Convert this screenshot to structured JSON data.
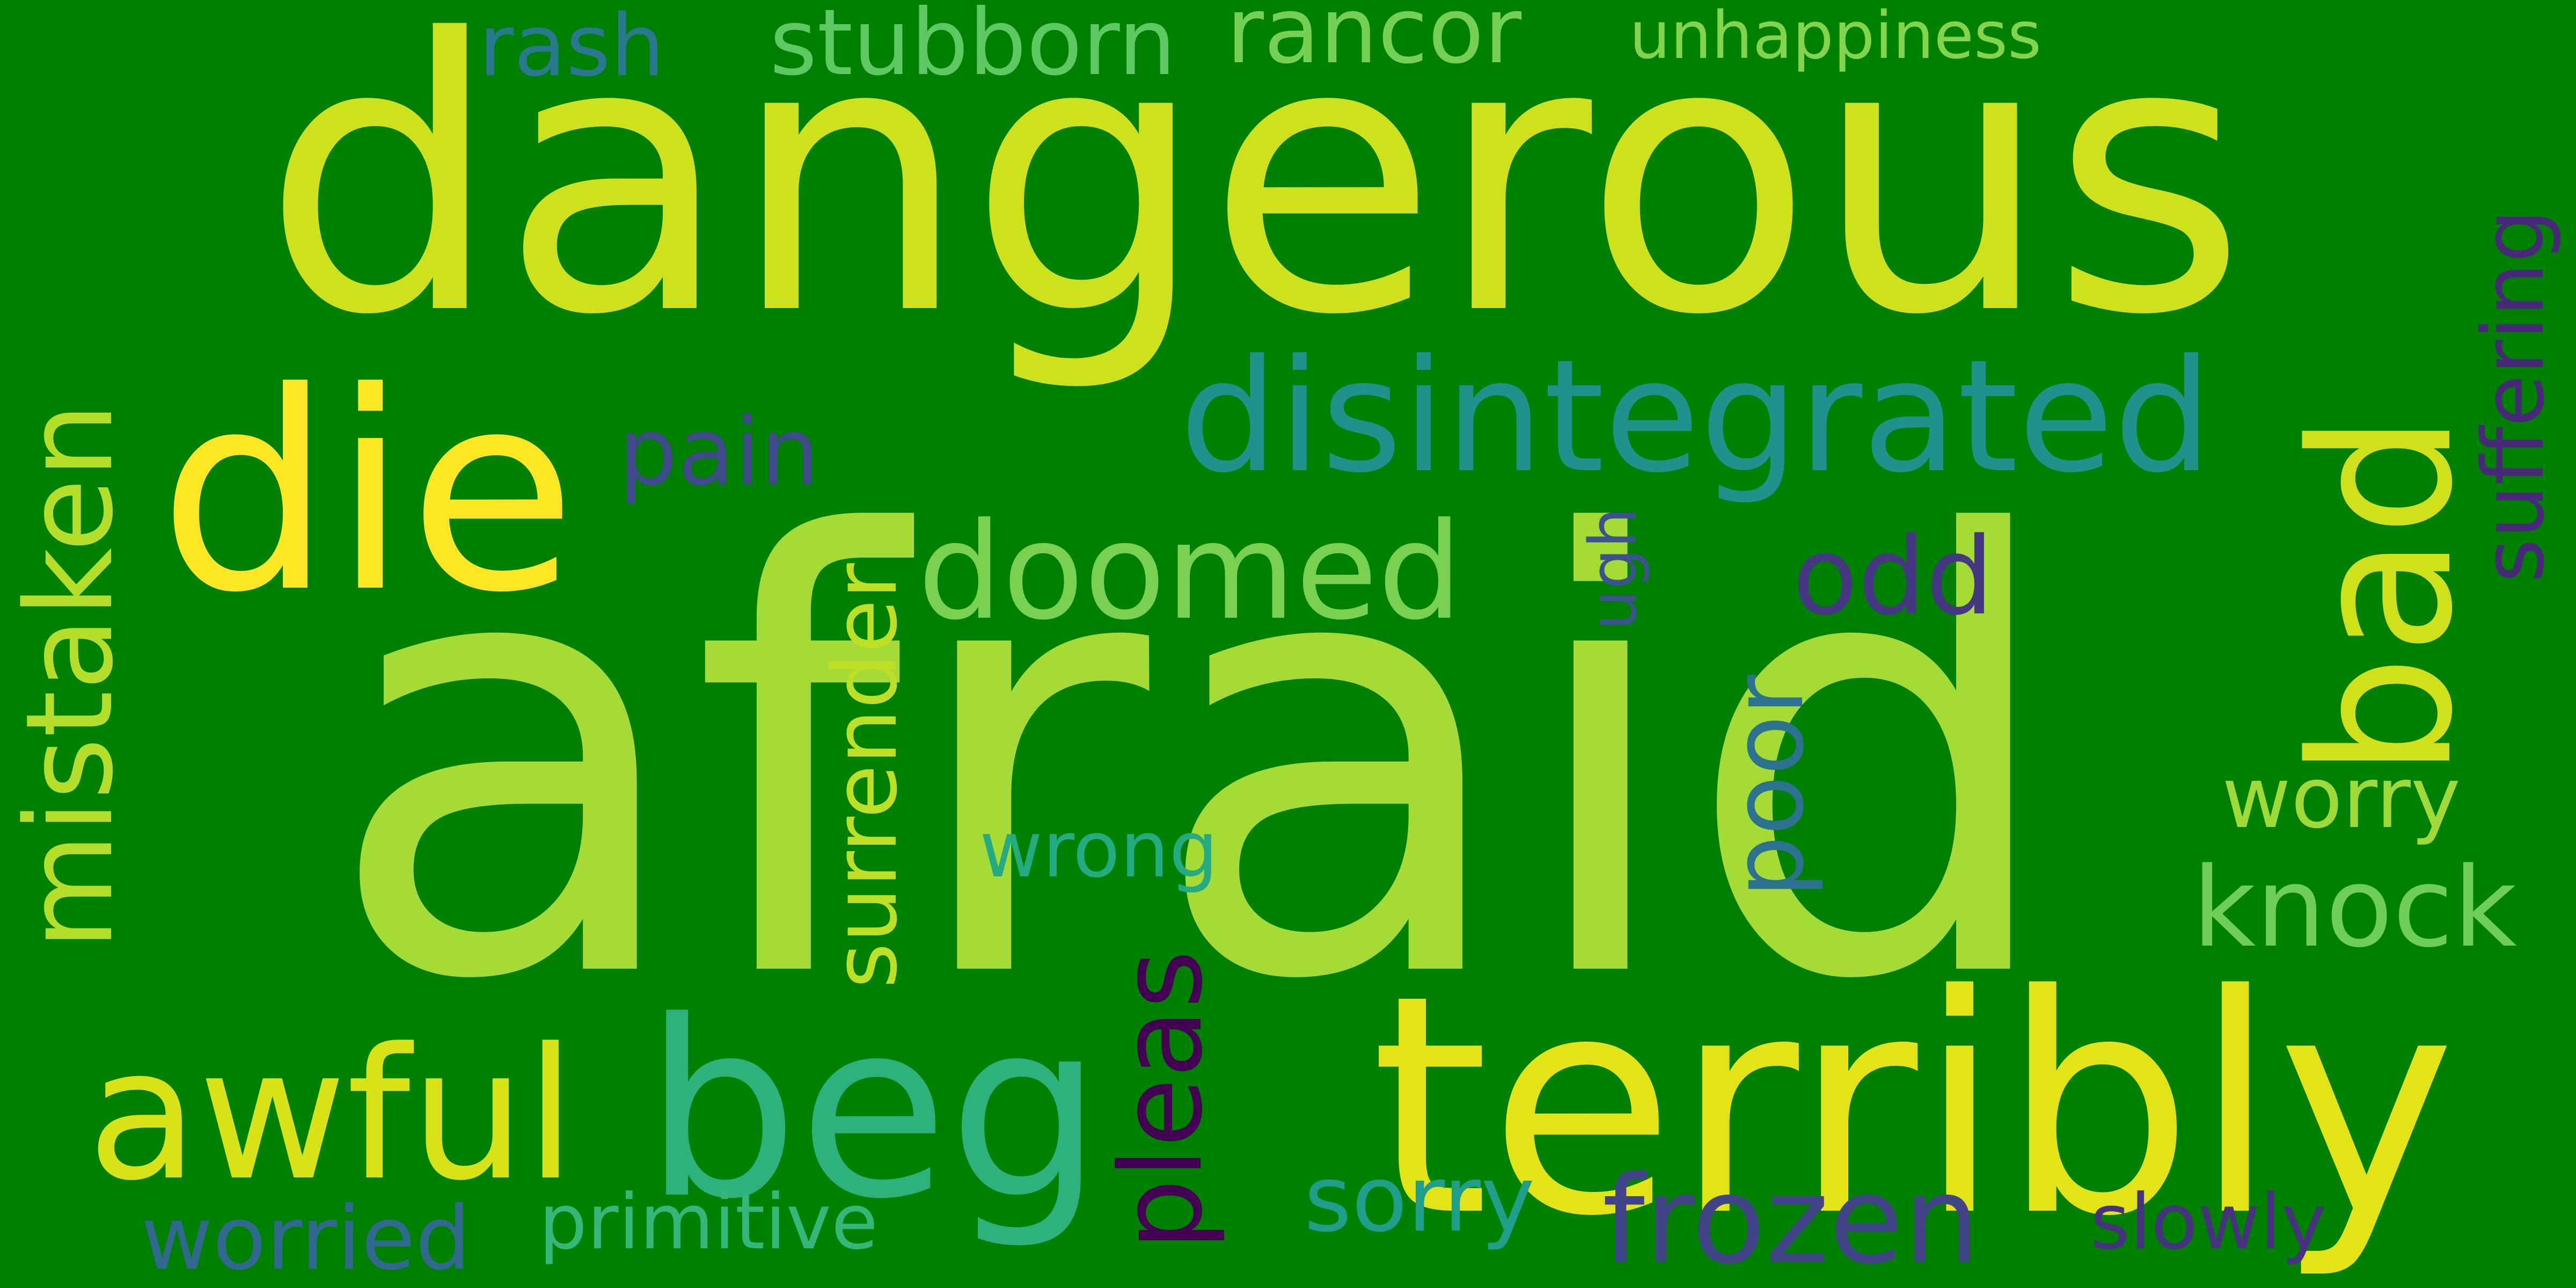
{
  "background_color": "#008000",
  "words": [
    {
      "key": "dangerous",
      "text": "dangerous",
      "color": "#cde11d",
      "orientation": "horizontal"
    },
    {
      "key": "afraid",
      "text": "afraid",
      "color": "#a5db36",
      "orientation": "horizontal"
    },
    {
      "key": "terribly",
      "text": "terribly",
      "color": "#e2e418",
      "orientation": "horizontal"
    },
    {
      "key": "beg",
      "text": "beg",
      "color": "#2db27d",
      "orientation": "horizontal"
    },
    {
      "key": "die",
      "text": "die",
      "color": "#fde725",
      "orientation": "horizontal"
    },
    {
      "key": "awful",
      "text": "awful",
      "color": "#d8e219",
      "orientation": "horizontal"
    },
    {
      "key": "disintegrated",
      "text": "disintegrated",
      "color": "#21918c",
      "orientation": "horizontal"
    },
    {
      "key": "doomed",
      "text": "doomed",
      "color": "#7ad151",
      "orientation": "horizontal"
    },
    {
      "key": "bad",
      "text": "bad",
      "color": "#d0e11c",
      "orientation": "vertical"
    },
    {
      "key": "mistaken",
      "text": "mistaken",
      "color": "#b5de2b",
      "orientation": "vertical"
    },
    {
      "key": "knock",
      "text": "knock",
      "color": "#6ece58",
      "orientation": "horizontal"
    },
    {
      "key": "pain",
      "text": "pain",
      "color": "#3e4a89",
      "orientation": "horizontal"
    },
    {
      "key": "odd",
      "text": "odd",
      "color": "#453781",
      "orientation": "horizontal"
    },
    {
      "key": "frozen",
      "text": "frozen",
      "color": "#414487",
      "orientation": "horizontal"
    },
    {
      "key": "pleas",
      "text": "pleas",
      "color": "#440154",
      "orientation": "vertical"
    },
    {
      "key": "suffering",
      "text": "suffering",
      "color": "#482878",
      "orientation": "vertical"
    },
    {
      "key": "surrender",
      "text": "surrender",
      "color": "#bddf26",
      "orientation": "vertical"
    },
    {
      "key": "poor",
      "text": "poor",
      "color": "#2c728e",
      "orientation": "vertical"
    },
    {
      "key": "worry",
      "text": "worry",
      "color": "#a0da39",
      "orientation": "horizontal"
    },
    {
      "key": "primitive",
      "text": "primitive",
      "color": "#35b779",
      "orientation": "horizontal"
    },
    {
      "key": "slowly",
      "text": "slowly",
      "color": "#46327e",
      "orientation": "horizontal"
    },
    {
      "key": "sorry",
      "text": "sorry",
      "color": "#1f9e89",
      "orientation": "horizontal"
    },
    {
      "key": "worried",
      "text": "worried",
      "color": "#31688e",
      "orientation": "horizontal"
    },
    {
      "key": "wrong",
      "text": "wrong",
      "color": "#25ab82",
      "orientation": "horizontal"
    },
    {
      "key": "ugh",
      "text": "ugh",
      "color": "#3b528b",
      "orientation": "vertical"
    },
    {
      "key": "stubborn",
      "text": "stubborn",
      "color": "#5ec962",
      "orientation": "horizontal"
    },
    {
      "key": "rash",
      "text": "rash",
      "color": "#2a788e",
      "orientation": "horizontal"
    },
    {
      "key": "rancor",
      "text": "rancor",
      "color": "#75d054",
      "orientation": "horizontal"
    },
    {
      "key": "unhappiness",
      "text": "unhappiness",
      "color": "#84d44b",
      "orientation": "horizontal"
    }
  ]
}
